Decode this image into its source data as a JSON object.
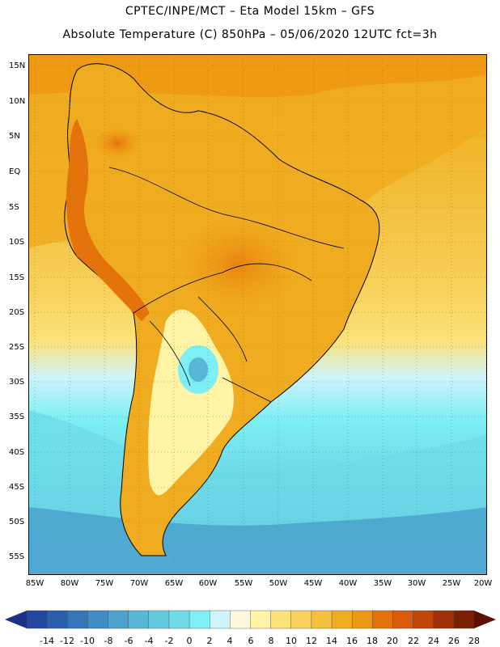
{
  "header": {
    "line1": "CPTEC/INPE/MCT –  Eta Model 15km – GFS",
    "line2": "Absolute Temperature (C) 850hPa – 05/06/2020 12UTC fct=3h"
  },
  "lat_labels": [
    "15N",
    "10N",
    "5N",
    "EQ",
    "5S",
    "10S",
    "15S",
    "20S",
    "25S",
    "30S",
    "35S",
    "40S",
    "45S",
    "50S",
    "55S"
  ],
  "lon_labels": [
    "85W",
    "80W",
    "75W",
    "70W",
    "65W",
    "60W",
    "55W",
    "50W",
    "45W",
    "40W",
    "35W",
    "30W",
    "25W",
    "20W"
  ],
  "colorbar": {
    "labels": [
      "-14",
      "-12",
      "-10",
      "-8",
      "-6",
      "-4",
      "-2",
      "0",
      "2",
      "4",
      "6",
      "8",
      "10",
      "12",
      "14",
      "16",
      "18",
      "20",
      "22",
      "24",
      "26",
      "28"
    ],
    "colors": [
      "#2346a0",
      "#2b5fae",
      "#3476b8",
      "#3f8cc4",
      "#4ba2cc",
      "#58b7d6",
      "#63c9df",
      "#6edbe8",
      "#7eeff5",
      "#d0f4fb",
      "#fff9e0",
      "#fff3a6",
      "#fbe27a",
      "#f7d15b",
      "#f3bf3c",
      "#f0ac20",
      "#ed9812",
      "#e5730c",
      "#d85a0a",
      "#c24608",
      "#a03106",
      "#7c2005"
    ],
    "low_color": "#1d2f86",
    "high_color": "#5c1004"
  }
}
